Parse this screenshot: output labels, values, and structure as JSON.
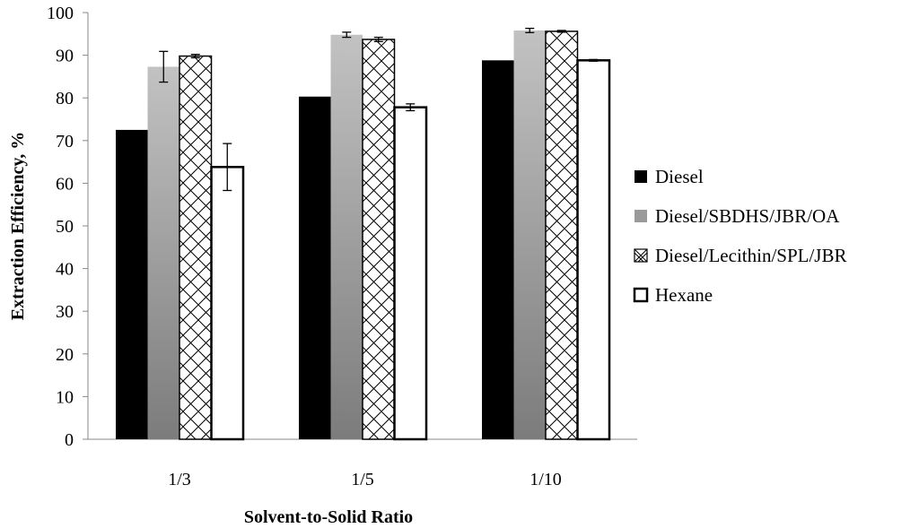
{
  "chart_data": {
    "type": "bar",
    "title": "",
    "xlabel": "Solvent-to-Solid Ratio",
    "ylabel": "Extraction Efficiency, %",
    "ylim": [
      0,
      100
    ],
    "yticks": [
      0,
      10,
      20,
      30,
      40,
      50,
      60,
      70,
      80,
      90,
      100
    ],
    "grid": false,
    "legend_position": "right",
    "categories": [
      "1/3",
      "1/5",
      "1/10"
    ],
    "series": [
      {
        "name": "Diesel",
        "fill": "black",
        "color": "#000000",
        "values": [
          72.5,
          80.3,
          88.8
        ],
        "errors": [
          null,
          null,
          null
        ]
      },
      {
        "name": "Diesel/SBDHS/JBR/OA",
        "fill": "gradient",
        "color": "#9a9a9a",
        "values": [
          87.3,
          94.8,
          95.8
        ],
        "errors": [
          3.6,
          0.6,
          0.5
        ]
      },
      {
        "name": "Diesel/Lecithin/SPL/JBR",
        "fill": "crosshatch",
        "color": "#000000",
        "values": [
          89.8,
          93.7,
          95.6
        ],
        "errors": [
          0.4,
          0.5,
          0.2
        ]
      },
      {
        "name": "Hexane",
        "fill": "white",
        "color": "#000000",
        "values": [
          63.8,
          77.8,
          88.8
        ],
        "errors": [
          5.5,
          0.8,
          0.2
        ]
      }
    ]
  }
}
